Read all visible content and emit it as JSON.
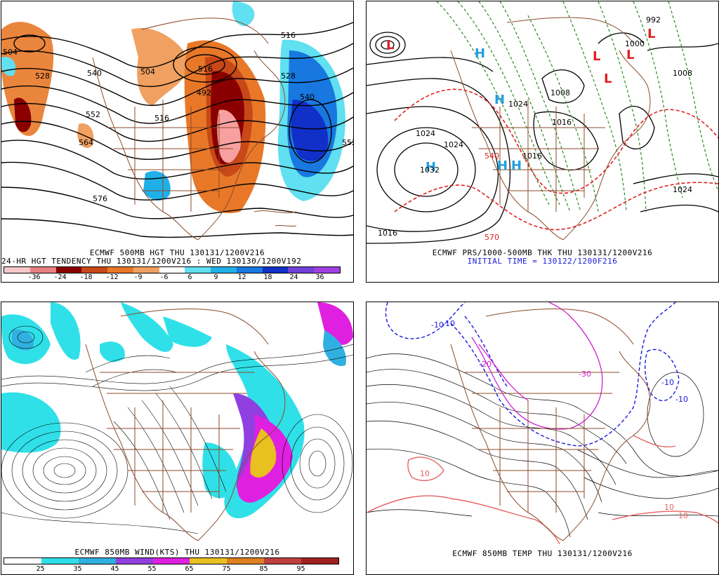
{
  "panels": {
    "hgt500": {
      "caption_line1": "ECMWF 500MB HGT THU 130131/1200V216",
      "caption_line2": "24-HR HGT TENDENCY THU 130131/1200V216 : WED 130130/1200V192",
      "colorbar_labels": [
        "-36",
        "-24",
        "-18",
        "-12",
        "-9",
        "-6",
        "6",
        "9",
        "12",
        "18",
        "24",
        "36"
      ],
      "colorbar_colors": [
        "#f8c8c8",
        "#e88080",
        "#8a0000",
        "#c84818",
        "#e87828",
        "#f0a060",
        "#ffffff",
        "#60e0f0",
        "#20b0e8",
        "#1878e0",
        "#1030c8",
        "#7040d8",
        "#a040e0"
      ],
      "contour_labels": [
        "504",
        "516",
        "528",
        "540",
        "552",
        "564",
        "576",
        "492",
        "504",
        "516",
        "528",
        "540",
        "552",
        "516"
      ]
    },
    "prs_thk": {
      "caption_line1": "ECMWF PRS/1000-500MB THK THU 130131/1200V216",
      "caption_line2": "INITIAL TIME = 130122/1200F216",
      "isobar_labels": [
        "1024",
        "1032",
        "1016",
        "1024",
        "1024",
        "1008",
        "1016",
        "1008",
        "1024",
        "1016",
        "1000",
        "992"
      ],
      "thickness_labels": [
        "570",
        "540"
      ],
      "high_symbol": "H",
      "low_symbol": "L"
    },
    "wind850": {
      "caption_line1": "ECMWF 850MB WIND(KTS) THU 130131/1200V216",
      "colorbar_labels": [
        "25",
        "35",
        "45",
        "55",
        "65",
        "75",
        "85",
        "95"
      ],
      "colorbar_colors": [
        "#ffffff",
        "#30e0e8",
        "#30b0e0",
        "#9040e0",
        "#e020e0",
        "#e8c020",
        "#e08020",
        "#c04040",
        "#a02020"
      ]
    },
    "temp850": {
      "caption_line1": "ECMWF 850MB TEMP THU 130131/1200V216",
      "contour_labels": [
        "-10",
        "-20",
        "-30",
        "-10",
        "10",
        "10",
        "10",
        "-10",
        "-10"
      ]
    }
  },
  "colors": {
    "coast": "#8b4a2a",
    "contour": "#000000",
    "thickness_cold": "#2e8b22",
    "thickness_warm": "#e02020",
    "high_marker": "#20a0e0",
    "low_marker": "#e02020",
    "temp_cold": "#1a1adc",
    "temp_zero": "#d020d0",
    "temp_warm": "#e86060"
  }
}
